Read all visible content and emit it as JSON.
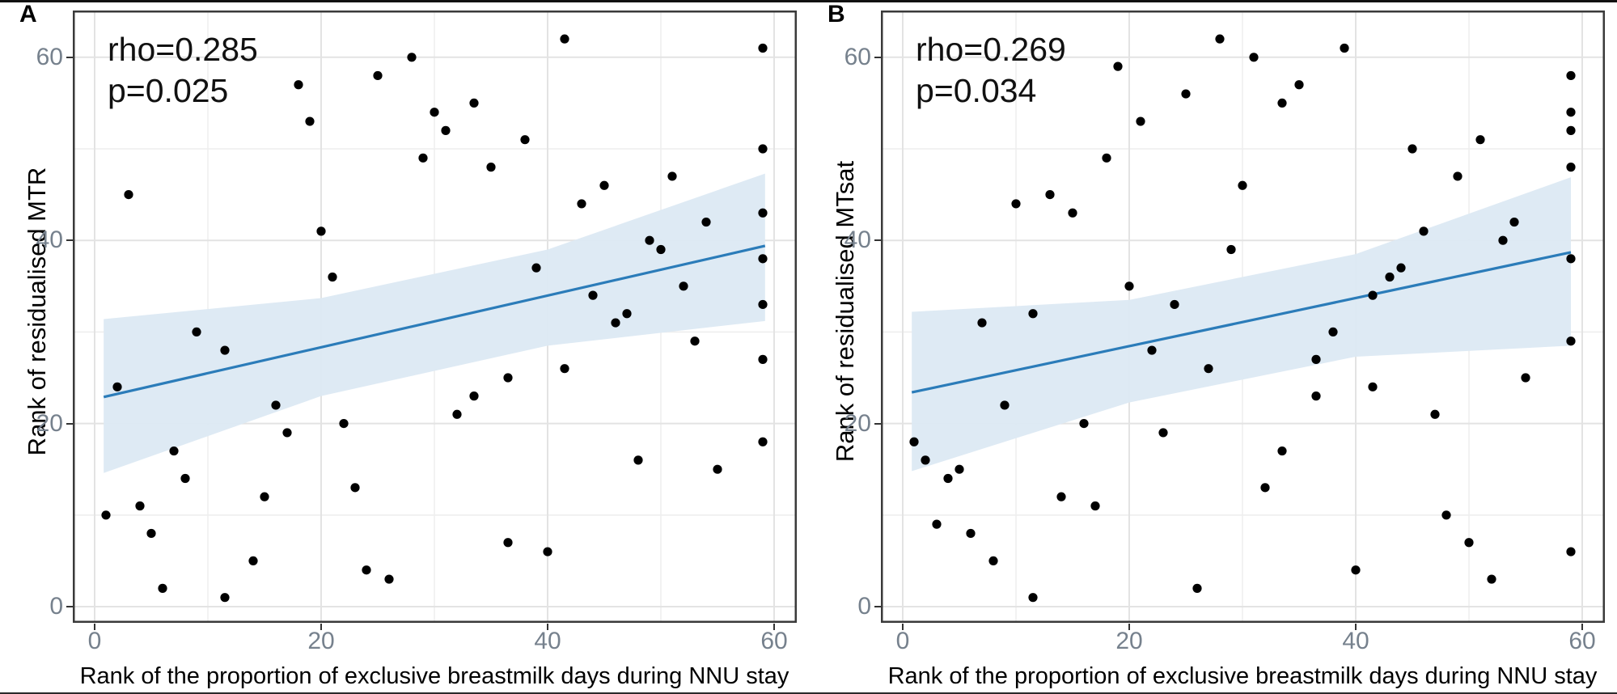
{
  "figure": {
    "xticks": [
      0,
      20,
      40,
      60
    ],
    "yticks": [
      0,
      20,
      40,
      60
    ],
    "minor_ticks": [
      10,
      30,
      50
    ],
    "colors": {
      "regression_line": "#2b7cb9",
      "confidence_band": "#dce9f3",
      "point": "#000000",
      "grid_major": "#e3e3e3",
      "grid_minor": "#eeeeee",
      "panel_border": "#3a3a3a",
      "tick_text": "#76818d",
      "axis_text": "#000000"
    }
  },
  "chart_data": [
    {
      "type": "scatter",
      "panel_label": "A",
      "xlabel": "Rank of the proportion of exclusive breastmilk days during NNU stay",
      "ylabel": "Rank of residualised MTR",
      "annotation": {
        "rho": "rho=0.285",
        "p": "p=0.025"
      },
      "xlim": [
        -2,
        62
      ],
      "ylim": [
        -2,
        65
      ],
      "grid": true,
      "legend": "none",
      "points": [
        [
          1,
          10
        ],
        [
          2,
          24
        ],
        [
          3,
          45
        ],
        [
          4,
          11
        ],
        [
          5,
          8
        ],
        [
          6,
          2
        ],
        [
          7,
          17
        ],
        [
          8,
          14
        ],
        [
          9,
          30
        ],
        [
          11.5,
          28
        ],
        [
          11.5,
          1
        ],
        [
          14,
          5
        ],
        [
          15,
          12
        ],
        [
          16,
          22
        ],
        [
          17,
          19
        ],
        [
          18,
          57
        ],
        [
          19,
          53
        ],
        [
          20,
          41
        ],
        [
          21,
          36
        ],
        [
          22,
          20
        ],
        [
          23,
          13
        ],
        [
          24,
          4
        ],
        [
          25,
          58
        ],
        [
          26,
          3
        ],
        [
          28,
          60
        ],
        [
          29,
          49
        ],
        [
          30,
          54
        ],
        [
          31,
          52
        ],
        [
          32,
          21
        ],
        [
          33.5,
          55
        ],
        [
          33.5,
          23
        ],
        [
          35,
          48
        ],
        [
          36.5,
          25
        ],
        [
          36.5,
          7
        ],
        [
          38,
          51
        ],
        [
          39,
          37
        ],
        [
          40,
          6
        ],
        [
          41.5,
          62
        ],
        [
          41.5,
          26
        ],
        [
          43,
          44
        ],
        [
          44,
          34
        ],
        [
          45,
          46
        ],
        [
          46,
          31
        ],
        [
          47,
          32
        ],
        [
          48,
          16
        ],
        [
          49,
          40
        ],
        [
          50,
          39
        ],
        [
          51,
          47
        ],
        [
          52,
          35
        ],
        [
          53,
          29
        ],
        [
          54,
          42
        ],
        [
          55,
          15
        ],
        [
          59,
          61
        ],
        [
          59,
          50
        ],
        [
          59,
          43
        ],
        [
          59,
          38
        ],
        [
          59,
          33
        ],
        [
          59,
          27
        ],
        [
          59,
          18
        ]
      ],
      "regression_line": {
        "x1": 0.8,
        "y1": 22.9,
        "x2": 59.2,
        "y2": 39.4
      },
      "confidence_band": {
        "x": [
          0.8,
          20,
          40,
          59.2
        ],
        "upper": [
          31.4,
          33.7,
          39.0,
          47.3
        ],
        "lower": [
          14.6,
          23.0,
          28.5,
          31.2
        ]
      }
    },
    {
      "type": "scatter",
      "panel_label": "B",
      "xlabel": "Rank of the proportion of exclusive breastmilk days during NNU stay",
      "ylabel": "Rank of residualised MTsat",
      "annotation": {
        "rho": "rho=0.269",
        "p": "p=0.034"
      },
      "xlim": [
        -2,
        62
      ],
      "ylim": [
        -2,
        65
      ],
      "grid": true,
      "legend": "none",
      "points": [
        [
          1,
          18
        ],
        [
          2,
          16
        ],
        [
          3,
          9
        ],
        [
          4,
          14
        ],
        [
          5,
          15
        ],
        [
          6,
          8
        ],
        [
          7,
          31
        ],
        [
          8,
          5
        ],
        [
          9,
          22
        ],
        [
          10,
          44
        ],
        [
          11.5,
          32
        ],
        [
          11.5,
          1
        ],
        [
          13,
          45
        ],
        [
          14,
          12
        ],
        [
          15,
          43
        ],
        [
          16,
          20
        ],
        [
          17,
          11
        ],
        [
          18,
          49
        ],
        [
          19,
          59
        ],
        [
          20,
          35
        ],
        [
          21,
          53
        ],
        [
          22,
          28
        ],
        [
          23,
          19
        ],
        [
          24,
          33
        ],
        [
          25,
          56
        ],
        [
          26,
          2
        ],
        [
          27,
          26
        ],
        [
          28,
          62
        ],
        [
          29,
          39
        ],
        [
          30,
          46
        ],
        [
          31,
          60
        ],
        [
          32,
          13
        ],
        [
          33.5,
          55
        ],
        [
          33.5,
          17
        ],
        [
          35,
          57
        ],
        [
          36.5,
          27
        ],
        [
          36.5,
          23
        ],
        [
          38,
          30
        ],
        [
          39,
          61
        ],
        [
          40,
          4
        ],
        [
          41.5,
          34
        ],
        [
          41.5,
          24
        ],
        [
          43,
          36
        ],
        [
          44,
          37
        ],
        [
          45,
          50
        ],
        [
          46,
          41
        ],
        [
          47,
          21
        ],
        [
          48,
          10
        ],
        [
          49,
          47
        ],
        [
          50,
          7
        ],
        [
          51,
          51
        ],
        [
          52,
          3
        ],
        [
          53,
          40
        ],
        [
          54,
          42
        ],
        [
          55,
          25
        ],
        [
          59,
          58
        ],
        [
          59,
          54
        ],
        [
          59,
          52
        ],
        [
          59,
          48
        ],
        [
          59,
          38
        ],
        [
          59,
          29
        ],
        [
          59,
          6
        ]
      ],
      "regression_line": {
        "x1": 0.8,
        "y1": 23.4,
        "x2": 59.0,
        "y2": 38.7
      },
      "confidence_band": {
        "x": [
          0.8,
          20,
          40,
          59.0
        ],
        "upper": [
          32.2,
          33.5,
          38.5,
          46.9
        ],
        "lower": [
          14.8,
          22.3,
          27.3,
          28.5
        ]
      }
    }
  ]
}
